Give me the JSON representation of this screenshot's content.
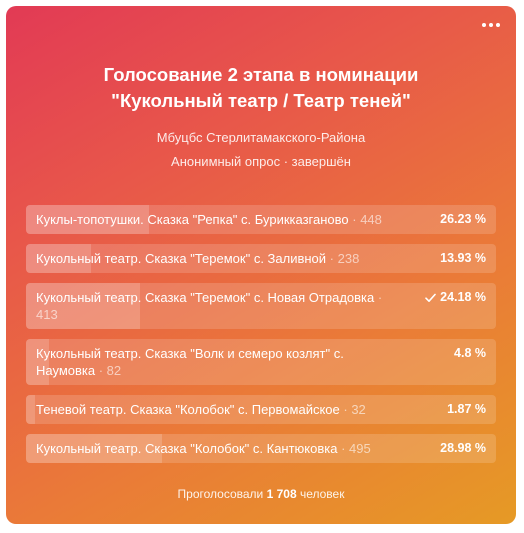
{
  "poll": {
    "title_line1": "Голосование 2 этапа в номинации",
    "title_line2": "\"Кукольный театр / Театр теней\"",
    "author": "Мбуцбс Стерлитамакского-Района",
    "meta": "Анонимный опрос · завершён",
    "options": [
      {
        "text": "Куклы-топотушки. Сказка \"Репка\" с. Бурикказганово",
        "count": "· 448",
        "percent": "26.23 %",
        "fraction": 0.2623,
        "voted": false
      },
      {
        "text": "Кукольный театр. Сказка \"Теремок\" с. Заливной",
        "count": "· 238",
        "percent": "13.93 %",
        "fraction": 0.1393,
        "voted": false
      },
      {
        "text": "Кукольный театр. Сказка \"Теремок\" с. Новая Отрадовка",
        "count": "· 413",
        "percent": "24.18 %",
        "fraction": 0.2418,
        "voted": true
      },
      {
        "text": "Кукольный театр. Сказка \"Волк и семеро козлят\" с. Наумовка",
        "count": "· 82",
        "percent": "4.8 %",
        "fraction": 0.048,
        "voted": false
      },
      {
        "text": "Теневой театр. Сказка \"Колобок\" с. Первомайское",
        "count": "· 32",
        "percent": "1.87 %",
        "fraction": 0.0187,
        "voted": false
      },
      {
        "text": "Кукольный театр. Сказка \"Колобок\" с. Кантюковка",
        "count": "· 495",
        "percent": "28.98 %",
        "fraction": 0.2898,
        "voted": false
      }
    ],
    "footer_prefix": "Проголосовали",
    "footer_count": "1 708",
    "footer_suffix": "человек"
  },
  "icons": {
    "more": "more-dots-icon",
    "check": "check-icon"
  }
}
